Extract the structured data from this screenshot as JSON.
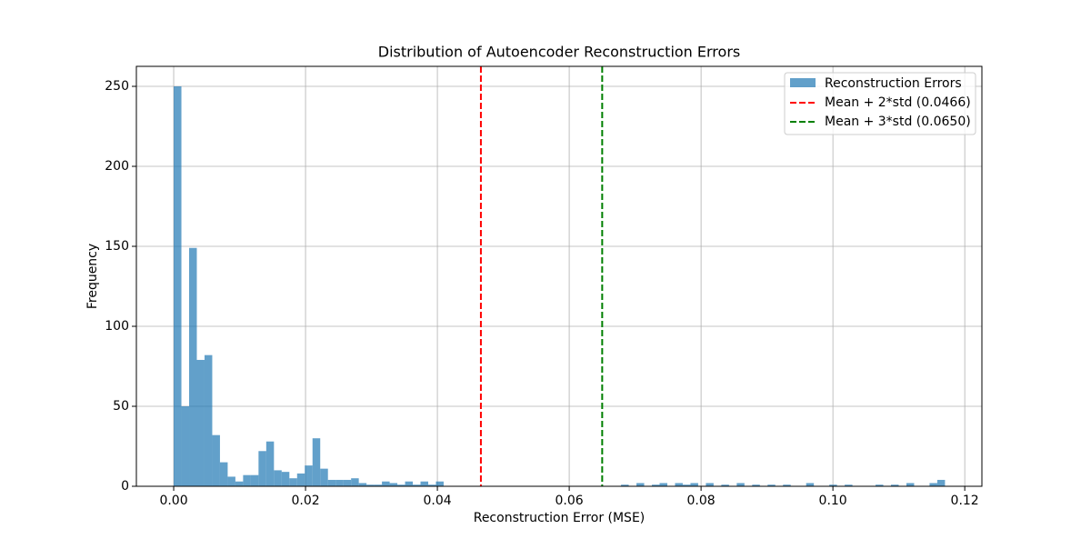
{
  "chart_data": {
    "type": "histogram",
    "title": "Distribution of Autoencoder Reconstruction Errors",
    "xlabel": "Reconstruction Error (MSE)",
    "ylabel": "Frequency",
    "name": "Reconstruction Errors",
    "color": "#1f77b4",
    "alpha": 0.7,
    "bins": [
      0,
      0.00117,
      0.00234,
      0.00351,
      0.00468,
      0.00585,
      0.00702,
      0.00819,
      0.00936,
      0.01053,
      0.0117,
      0.01287,
      0.01404,
      0.01521,
      0.01638,
      0.01755,
      0.01872,
      0.01989,
      0.02106,
      0.02223,
      0.0234,
      0.02457,
      0.02574,
      0.02691,
      0.02808,
      0.02925,
      0.03042,
      0.03159,
      0.03276,
      0.03393,
      0.0351,
      0.03627,
      0.03744,
      0.03861,
      0.03978,
      0.04095,
      0.04212,
      0.04329,
      0.04446,
      0.04563,
      0.0468,
      0.04797,
      0.04914,
      0.05031,
      0.05148,
      0.05265,
      0.05382,
      0.05499,
      0.05616,
      0.05733,
      0.0585,
      0.05967,
      0.06084,
      0.06201,
      0.06318,
      0.06435,
      0.06552,
      0.06669,
      0.06786,
      0.06903,
      0.0702,
      0.07137,
      0.07254,
      0.07371,
      0.07488,
      0.07605,
      0.07722,
      0.07839,
      0.07956,
      0.08073,
      0.0819,
      0.08307,
      0.08424,
      0.08541,
      0.08658,
      0.08775,
      0.08892,
      0.09009,
      0.09126,
      0.09243,
      0.0936,
      0.09477,
      0.09594,
      0.09711,
      0.09828,
      0.09945,
      0.10062,
      0.10179,
      0.10296,
      0.10413,
      0.1053,
      0.10647,
      0.10764,
      0.10881,
      0.10998,
      0.11115,
      0.11232,
      0.11349,
      0.11466,
      0.11583,
      0.117
    ],
    "counts": [
      250,
      50,
      149,
      79,
      82,
      32,
      15,
      6,
      3,
      7,
      7,
      22,
      28,
      10,
      9,
      5,
      8,
      13,
      30,
      11,
      4,
      4,
      4,
      5,
      2,
      1,
      1,
      3,
      2,
      1,
      3,
      1,
      3,
      1,
      3,
      0,
      0,
      0,
      0,
      0,
      0,
      0,
      0,
      0,
      0,
      0,
      0,
      0,
      0,
      0,
      0,
      0,
      0,
      0,
      0,
      0,
      0,
      0,
      1,
      0,
      2,
      0,
      1,
      2,
      0,
      2,
      1,
      2,
      0,
      2,
      0,
      1,
      0,
      2,
      0,
      1,
      0,
      1,
      0,
      1,
      0,
      0,
      2,
      0,
      0,
      1,
      0,
      1,
      0,
      0,
      0,
      1,
      0,
      1,
      0,
      2,
      0,
      0,
      2,
      4
    ],
    "vlines": [
      {
        "label": "Mean + 2*std (0.0466)",
        "x": 0.0466,
        "color": "#ff0000"
      },
      {
        "label": "Mean + 3*std (0.0650)",
        "x": 0.065,
        "color": "#008000"
      }
    ],
    "xlim": [
      -0.00566,
      0.1226
    ],
    "ylim": [
      0,
      262.5
    ],
    "xticks": [
      {
        "value": 0,
        "label": "0.00"
      },
      {
        "value": 0.02,
        "label": "0.02"
      },
      {
        "value": 0.04,
        "label": "0.04"
      },
      {
        "value": 0.06,
        "label": "0.06"
      },
      {
        "value": 0.08,
        "label": "0.08"
      },
      {
        "value": 0.1,
        "label": "0.10"
      },
      {
        "value": 0.12,
        "label": "0.12"
      }
    ],
    "yticks": [
      0,
      50,
      100,
      150,
      200,
      250
    ],
    "grid": true,
    "legend": "upper right"
  }
}
